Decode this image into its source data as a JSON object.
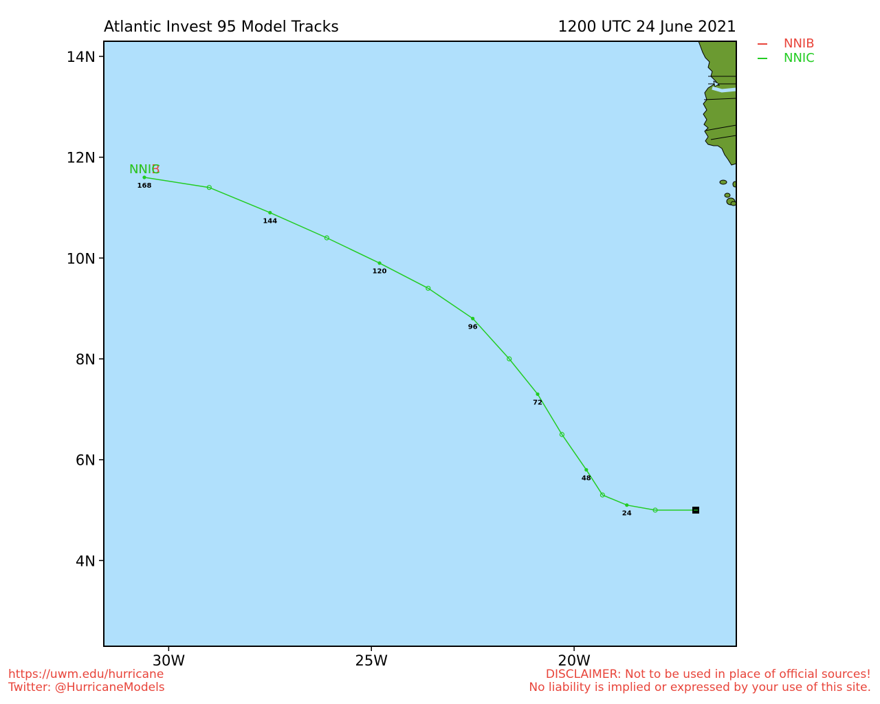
{
  "header": {
    "title": "Atlantic Invest 95 Model Tracks",
    "datetime": "1200 UTC 24 June 2021"
  },
  "legend": {
    "items": [
      {
        "label": "NNIB",
        "color": "#e8443a"
      },
      {
        "label": "NNIC",
        "color": "#22cc22"
      }
    ]
  },
  "footer": {
    "left_lines": [
      "https://uwm.edu/hurricane",
      "Twitter: @HurricaneModels"
    ],
    "right_lines": [
      "DISCLAIMER: Not to be used in place of official sources!",
      "No liability is implied or expressed by your use of this site."
    ]
  },
  "colors": {
    "ocean": "#b0e0fc",
    "land": "#6b9a31",
    "track": "#22cc22",
    "frame": "#000000"
  },
  "chart_data": {
    "type": "map-track",
    "xlabel": "",
    "ylabel": "",
    "lon_range": [
      -31.6,
      -16.0
    ],
    "lat_range": [
      2.3,
      14.3
    ],
    "lon_ticks": [
      {
        "value": -30,
        "label": "30W"
      },
      {
        "value": -25,
        "label": "25W"
      },
      {
        "value": -20,
        "label": "20W"
      }
    ],
    "lat_ticks": [
      {
        "value": 4,
        "label": "4N"
      },
      {
        "value": 6,
        "label": "6N"
      },
      {
        "value": 8,
        "label": "8N"
      },
      {
        "value": 10,
        "label": "10N"
      },
      {
        "value": 12,
        "label": "12N"
      },
      {
        "value": 14,
        "label": "14N"
      }
    ],
    "initial_position": {
      "lon": -17.0,
      "lat": 5.0
    },
    "tracks": [
      {
        "model": "NNIC",
        "color": "#22cc22",
        "points": [
          {
            "hour": 0,
            "lon": -17.0,
            "lat": 5.0
          },
          {
            "hour": 12,
            "lon": -18.0,
            "lat": 5.0
          },
          {
            "hour": 24,
            "lon": -18.7,
            "lat": 5.1
          },
          {
            "hour": 36,
            "lon": -19.3,
            "lat": 5.3
          },
          {
            "hour": 48,
            "lon": -19.7,
            "lat": 5.8
          },
          {
            "hour": 60,
            "lon": -20.3,
            "lat": 6.5
          },
          {
            "hour": 72,
            "lon": -20.9,
            "lat": 7.3
          },
          {
            "hour": 84,
            "lon": -21.6,
            "lat": 8.0
          },
          {
            "hour": 96,
            "lon": -22.5,
            "lat": 8.8
          },
          {
            "hour": 108,
            "lon": -23.6,
            "lat": 9.4
          },
          {
            "hour": 120,
            "lon": -24.8,
            "lat": 9.9
          },
          {
            "hour": 132,
            "lon": -26.1,
            "lat": 10.4
          },
          {
            "hour": 144,
            "lon": -27.5,
            "lat": 10.9
          },
          {
            "hour": 156,
            "lon": -29.0,
            "lat": 11.4
          },
          {
            "hour": 168,
            "lon": -30.6,
            "lat": 11.6
          }
        ],
        "labeled_hours": [
          24,
          48,
          72,
          96,
          120,
          144,
          168
        ]
      },
      {
        "model": "NNIB",
        "color": "#e8443a",
        "points": [],
        "labeled_hours": []
      }
    ],
    "end_labels": [
      {
        "text": "NNIB",
        "color": "#e8443a"
      },
      {
        "text": "NNIC",
        "color": "#22cc22"
      }
    ]
  }
}
